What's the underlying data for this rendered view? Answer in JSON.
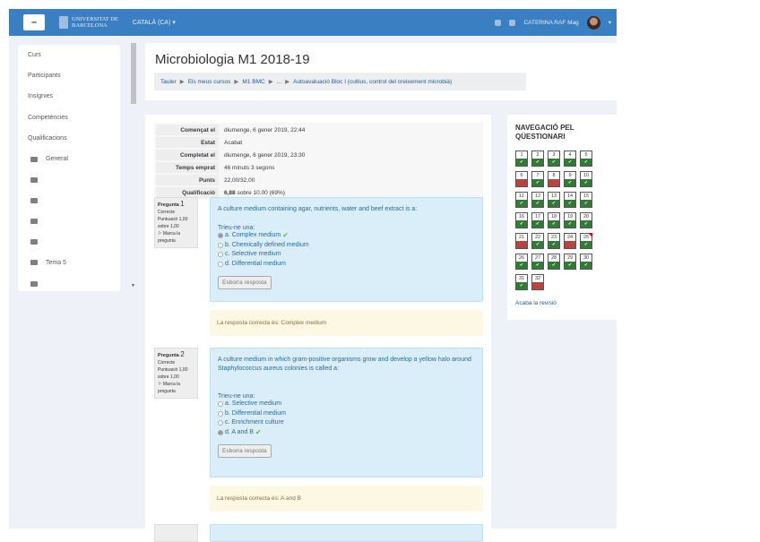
{
  "navbar": {
    "menu_icon": "hamburger-icon",
    "logo_line1": "UNIVERSITAT DE",
    "logo_line2": "BARCELONA",
    "language": "CATALÀ (CA) ▾",
    "user_name": "CATERINA RAF Mag"
  },
  "drawer": {
    "items": [
      "Curs",
      "Participants",
      "Insígnies",
      "Competències",
      "Qualificacions"
    ],
    "sections": [
      "General",
      "",
      "",
      "",
      "",
      "Tema 5",
      ""
    ]
  },
  "header": {
    "title": "Microbiologia M1 2018-19",
    "breadcrumb": [
      "Tauler",
      "Els meus cursos",
      "M1 BMC",
      "...",
      "Autoavaluació Bloc I (cultius, control del creixement microbià)"
    ]
  },
  "summary": [
    {
      "k": "Començat el",
      "v": "diumenge, 6 gener 2019, 22:44"
    },
    {
      "k": "Estat",
      "v": "Acabat"
    },
    {
      "k": "Completat el",
      "v": "diumenge, 6 gener 2019, 23:30"
    },
    {
      "k": "Temps emprat",
      "v": "46 minuts 3 segons"
    },
    {
      "k": "Punts",
      "v": "22,00/32,00"
    },
    {
      "k": "Qualificació",
      "v_bold": "6,88",
      "v": " sobre 10,00 (69%)"
    }
  ],
  "questions": [
    {
      "label": "Pregunta",
      "num": "1",
      "state": "Correcte",
      "mark": "Puntuació 1,00",
      "mark2": "sobre 1,00",
      "flag": "Marca la pregunta",
      "text": "A culture medium containing agar, nutrients, water and beef extract is a:",
      "prompt": "Trieu-ne una:",
      "options": [
        "a. Complex medium",
        "b. Chemically defined medium",
        "c. Selective medium",
        "d. Differential medium"
      ],
      "selected": 0,
      "button": "Esborra resposta",
      "feedback": "La resposta correcta és: Complex medium"
    },
    {
      "label": "Pregunta",
      "num": "2",
      "state": "Correcte",
      "mark": "Puntuació 1,00",
      "mark2": "sobre 1,00",
      "flag": "Marca la pregunta",
      "text": "A culture medium in which gram-positive organisms grow and develop a yellow halo around Staphylococcus aureus colonies is called a:",
      "prompt": "Trieu-ne una:",
      "options": [
        "a. Selective medium",
        "b. Differential medium",
        "c. Enrichment culture",
        "d. A and B"
      ],
      "selected": 3,
      "button": "Esborra resposta",
      "feedback": "La resposta correcta és: A and B"
    }
  ],
  "quiz_nav": {
    "title_line1": "NAVEGACIÓ PEL",
    "title_line2": "QÜESTIONARI",
    "wrong": [
      6,
      8,
      21,
      24,
      32
    ],
    "flagged": [
      25
    ],
    "total": 32,
    "finish": "Acaba la revisió",
    "colors": {
      "correct": "#2e7d32",
      "incorrect": "#b8433f"
    }
  }
}
